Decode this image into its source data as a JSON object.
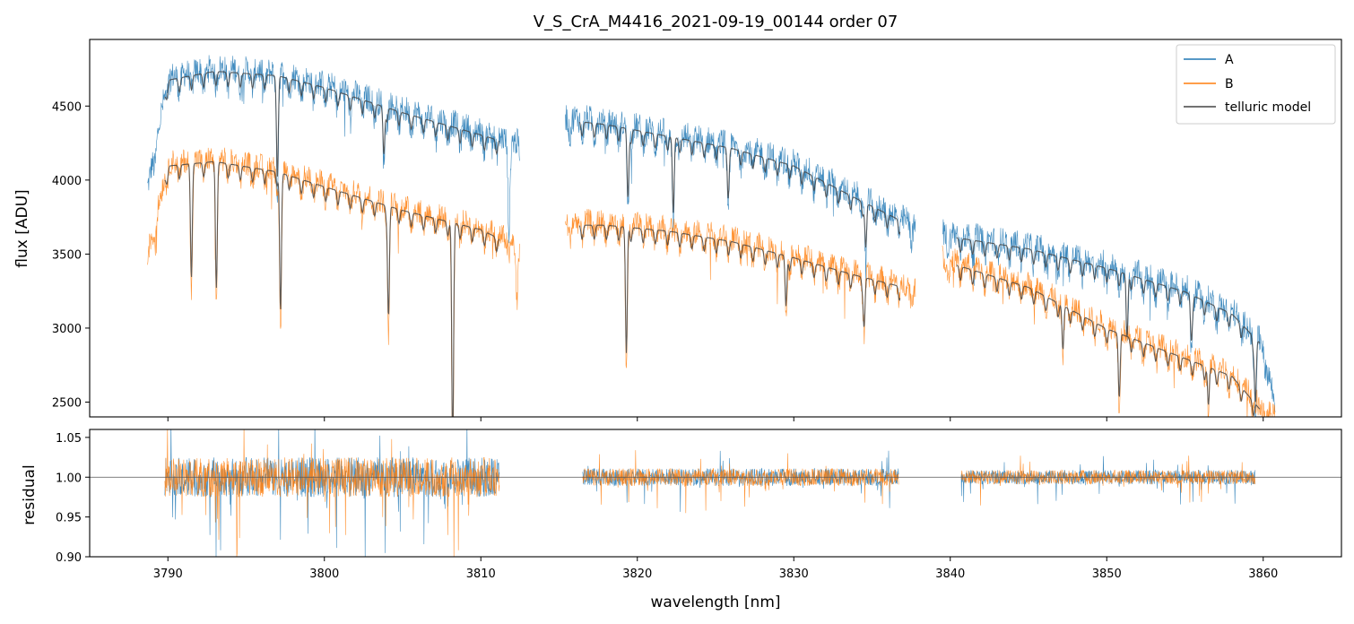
{
  "chart_data": [
    {
      "type": "line",
      "title": "V_S_CrA_M4416_2021-09-19_00144  order 07",
      "xlabel": "",
      "ylabel": "flux [ADU]",
      "xlim": [
        3785,
        3865
      ],
      "ylim": [
        2400,
        4950
      ],
      "yticks": [
        2500,
        3000,
        3500,
        4000,
        4500
      ],
      "ytick_labels": [
        "2500",
        "3000",
        "3500",
        "4000",
        "4500"
      ],
      "xticks": [
        3790,
        3800,
        3810,
        3820,
        3830,
        3840,
        3850,
        3860
      ],
      "legend": {
        "location": "upper right",
        "entries": [
          "A",
          "B",
          "telluric model"
        ]
      },
      "segments": [
        [
          3788.7,
          3812.5
        ],
        [
          3815.4,
          3837.8
        ],
        [
          3839.5,
          3860.8
        ]
      ],
      "series": [
        {
          "name": "A",
          "color": "#1f77b4",
          "anchors": [
            [
              3788.7,
              3950
            ],
            [
              3790,
              4700
            ],
            [
              3793,
              4760
            ],
            [
              3797,
              4730
            ],
            [
              3800,
              4650
            ],
            [
              3805,
              4480
            ],
            [
              3810,
              4330
            ],
            [
              3812.5,
              4250
            ],
            [
              3815.4,
              4430
            ],
            [
              3818,
              4400
            ],
            [
              3822,
              4320
            ],
            [
              3826,
              4240
            ],
            [
              3830,
              4120
            ],
            [
              3834,
              3900
            ],
            [
              3837.8,
              3700
            ],
            [
              3839.5,
              3650
            ],
            [
              3845,
              3560
            ],
            [
              3850,
              3430
            ],
            [
              3855,
              3270
            ],
            [
              3858,
              3120
            ],
            [
              3860,
              2900
            ],
            [
              3860.8,
              2450
            ]
          ],
          "dips": [
            [
              3797,
              700
            ],
            [
              3803.8,
              380
            ],
            [
              3811.8,
              500
            ],
            [
              3819.4,
              550
            ],
            [
              3822.3,
              600
            ],
            [
              3825.8,
              300
            ],
            [
              3834.6,
              350
            ],
            [
              3851.3,
              500
            ],
            [
              3855.4,
              300
            ],
            [
              3859.5,
              500
            ]
          ]
        },
        {
          "name": "B",
          "color": "#ff7f0e",
          "anchors": [
            [
              3788.7,
              3500
            ],
            [
              3790,
              4120
            ],
            [
              3793,
              4150
            ],
            [
              3797,
              4080
            ],
            [
              3800,
              3980
            ],
            [
              3805,
              3820
            ],
            [
              3810,
              3690
            ],
            [
              3812.5,
              3560
            ],
            [
              3815.4,
              3720
            ],
            [
              3818,
              3720
            ],
            [
              3822,
              3680
            ],
            [
              3826,
              3610
            ],
            [
              3830,
              3500
            ],
            [
              3834,
              3380
            ],
            [
              3837.8,
              3280
            ],
            [
              3839.5,
              3480
            ],
            [
              3845,
              3300
            ],
            [
              3850,
              3020
            ],
            [
              3855,
              2820
            ],
            [
              3858,
              2700
            ],
            [
              3860,
              2450
            ],
            [
              3860.8,
              2400
            ]
          ],
          "dips": [
            [
              3791.5,
              800
            ],
            [
              3793.1,
              900
            ],
            [
              3797.2,
              1100
            ],
            [
              3804.1,
              850
            ],
            [
              3808.2,
              1800
            ],
            [
              3812.3,
              400
            ],
            [
              3819.3,
              1000
            ],
            [
              3829.5,
              400
            ],
            [
              3834.5,
              350
            ],
            [
              3847.2,
              350
            ],
            [
              3850.8,
              400
            ],
            [
              3856.5,
              300
            ]
          ]
        },
        {
          "name": "telluric model",
          "color": "#444444",
          "anchors": [
            [
              3789.8,
              4700
            ],
            [
              3793,
              4745
            ],
            [
              3797,
              4690
            ],
            [
              3800,
              4600
            ],
            [
              3805,
              4460
            ],
            [
              3810,
              4340
            ],
            [
              3811.2,
              4300
            ]
          ],
          "anchors_b": [
            [
              3789.8,
              4110
            ],
            [
              3793,
              4130
            ],
            [
              3797,
              4060
            ],
            [
              3800,
              3970
            ],
            [
              3805,
              3820
            ],
            [
              3810,
              3680
            ],
            [
              3811.2,
              3650
            ]
          ]
        }
      ]
    },
    {
      "type": "line",
      "title": "",
      "xlabel": "wavelength [nm]",
      "ylabel": "residual",
      "xlim": [
        3785,
        3865
      ],
      "ylim": [
        0.9,
        1.06
      ],
      "yticks": [
        0.9,
        0.95,
        1.0,
        1.05
      ],
      "ytick_labels": [
        "0.90",
        "0.95",
        "1.00",
        "1.05"
      ],
      "xticks": [
        3790,
        3800,
        3810,
        3820,
        3830,
        3840,
        3850,
        3860
      ],
      "xtick_labels": [
        "3790",
        "3800",
        "3810",
        "3820",
        "3830",
        "3840",
        "3850",
        "3860"
      ],
      "reference_line": 1.0,
      "segments": [
        [
          3789.8,
          3811.2
        ],
        [
          3816.5,
          3836.7
        ],
        [
          3840.7,
          3859.5
        ]
      ],
      "segment_noise": [
        0.025,
        0.011,
        0.009
      ],
      "series": [
        {
          "name": "A",
          "color": "#1f77b4"
        },
        {
          "name": "B",
          "color": "#ff7f0e"
        }
      ]
    }
  ]
}
